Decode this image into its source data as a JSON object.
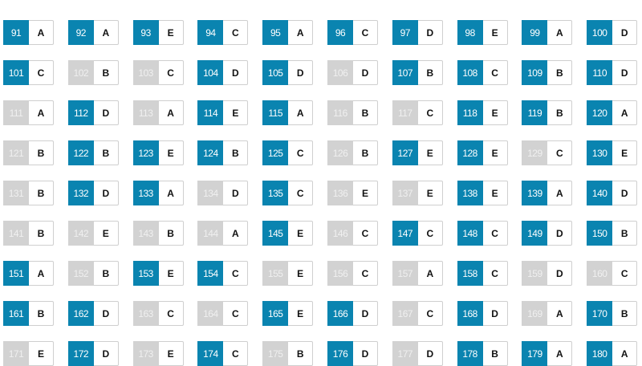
{
  "colors": {
    "answered": "#0a84b0",
    "unanswered": "#d2d2d2"
  },
  "questions": [
    {
      "n": "91",
      "a": "A",
      "on": true
    },
    {
      "n": "92",
      "a": "A",
      "on": true
    },
    {
      "n": "93",
      "a": "E",
      "on": true
    },
    {
      "n": "94",
      "a": "C",
      "on": true
    },
    {
      "n": "95",
      "a": "A",
      "on": true
    },
    {
      "n": "96",
      "a": "C",
      "on": true
    },
    {
      "n": "97",
      "a": "D",
      "on": true
    },
    {
      "n": "98",
      "a": "E",
      "on": true
    },
    {
      "n": "99",
      "a": "A",
      "on": true
    },
    {
      "n": "100",
      "a": "D",
      "on": true
    },
    {
      "n": "101",
      "a": "C",
      "on": true
    },
    {
      "n": "102",
      "a": "B",
      "on": false
    },
    {
      "n": "103",
      "a": "C",
      "on": false
    },
    {
      "n": "104",
      "a": "D",
      "on": true
    },
    {
      "n": "105",
      "a": "D",
      "on": true
    },
    {
      "n": "106",
      "a": "D",
      "on": false
    },
    {
      "n": "107",
      "a": "B",
      "on": true
    },
    {
      "n": "108",
      "a": "C",
      "on": true
    },
    {
      "n": "109",
      "a": "B",
      "on": true
    },
    {
      "n": "110",
      "a": "D",
      "on": true
    },
    {
      "n": "111",
      "a": "A",
      "on": false
    },
    {
      "n": "112",
      "a": "D",
      "on": true
    },
    {
      "n": "113",
      "a": "A",
      "on": false
    },
    {
      "n": "114",
      "a": "E",
      "on": true
    },
    {
      "n": "115",
      "a": "A",
      "on": true
    },
    {
      "n": "116",
      "a": "B",
      "on": false
    },
    {
      "n": "117",
      "a": "C",
      "on": false
    },
    {
      "n": "118",
      "a": "E",
      "on": true
    },
    {
      "n": "119",
      "a": "B",
      "on": true
    },
    {
      "n": "120",
      "a": "A",
      "on": true
    },
    {
      "n": "121",
      "a": "B",
      "on": false
    },
    {
      "n": "122",
      "a": "B",
      "on": true
    },
    {
      "n": "123",
      "a": "E",
      "on": true
    },
    {
      "n": "124",
      "a": "B",
      "on": true
    },
    {
      "n": "125",
      "a": "C",
      "on": true
    },
    {
      "n": "126",
      "a": "B",
      "on": false
    },
    {
      "n": "127",
      "a": "E",
      "on": true
    },
    {
      "n": "128",
      "a": "E",
      "on": true
    },
    {
      "n": "129",
      "a": "C",
      "on": false
    },
    {
      "n": "130",
      "a": "E",
      "on": true
    },
    {
      "n": "131",
      "a": "B",
      "on": false
    },
    {
      "n": "132",
      "a": "D",
      "on": true
    },
    {
      "n": "133",
      "a": "A",
      "on": true
    },
    {
      "n": "134",
      "a": "D",
      "on": false
    },
    {
      "n": "135",
      "a": "C",
      "on": true
    },
    {
      "n": "136",
      "a": "E",
      "on": false
    },
    {
      "n": "137",
      "a": "E",
      "on": false
    },
    {
      "n": "138",
      "a": "E",
      "on": true
    },
    {
      "n": "139",
      "a": "A",
      "on": true
    },
    {
      "n": "140",
      "a": "D",
      "on": true
    },
    {
      "n": "141",
      "a": "B",
      "on": false
    },
    {
      "n": "142",
      "a": "E",
      "on": false
    },
    {
      "n": "143",
      "a": "B",
      "on": false
    },
    {
      "n": "144",
      "a": "A",
      "on": false
    },
    {
      "n": "145",
      "a": "E",
      "on": true
    },
    {
      "n": "146",
      "a": "C",
      "on": false
    },
    {
      "n": "147",
      "a": "C",
      "on": true
    },
    {
      "n": "148",
      "a": "C",
      "on": true
    },
    {
      "n": "149",
      "a": "D",
      "on": true
    },
    {
      "n": "150",
      "a": "B",
      "on": true
    },
    {
      "n": "151",
      "a": "A",
      "on": true
    },
    {
      "n": "152",
      "a": "B",
      "on": false
    },
    {
      "n": "153",
      "a": "E",
      "on": true
    },
    {
      "n": "154",
      "a": "C",
      "on": true
    },
    {
      "n": "155",
      "a": "E",
      "on": false
    },
    {
      "n": "156",
      "a": "C",
      "on": false
    },
    {
      "n": "157",
      "a": "A",
      "on": false
    },
    {
      "n": "158",
      "a": "C",
      "on": true
    },
    {
      "n": "159",
      "a": "D",
      "on": false
    },
    {
      "n": "160",
      "a": "C",
      "on": false
    },
    {
      "n": "161",
      "a": "B",
      "on": true
    },
    {
      "n": "162",
      "a": "D",
      "on": true
    },
    {
      "n": "163",
      "a": "C",
      "on": false
    },
    {
      "n": "164",
      "a": "C",
      "on": false
    },
    {
      "n": "165",
      "a": "E",
      "on": true
    },
    {
      "n": "166",
      "a": "D",
      "on": true
    },
    {
      "n": "167",
      "a": "C",
      "on": false
    },
    {
      "n": "168",
      "a": "D",
      "on": true
    },
    {
      "n": "169",
      "a": "A",
      "on": false
    },
    {
      "n": "170",
      "a": "B",
      "on": true
    },
    {
      "n": "171",
      "a": "E",
      "on": false
    },
    {
      "n": "172",
      "a": "D",
      "on": true
    },
    {
      "n": "173",
      "a": "E",
      "on": false
    },
    {
      "n": "174",
      "a": "C",
      "on": true
    },
    {
      "n": "175",
      "a": "B",
      "on": false
    },
    {
      "n": "176",
      "a": "D",
      "on": true
    },
    {
      "n": "177",
      "a": "D",
      "on": false
    },
    {
      "n": "178",
      "a": "B",
      "on": true
    },
    {
      "n": "179",
      "a": "A",
      "on": true
    },
    {
      "n": "180",
      "a": "A",
      "on": true
    }
  ]
}
